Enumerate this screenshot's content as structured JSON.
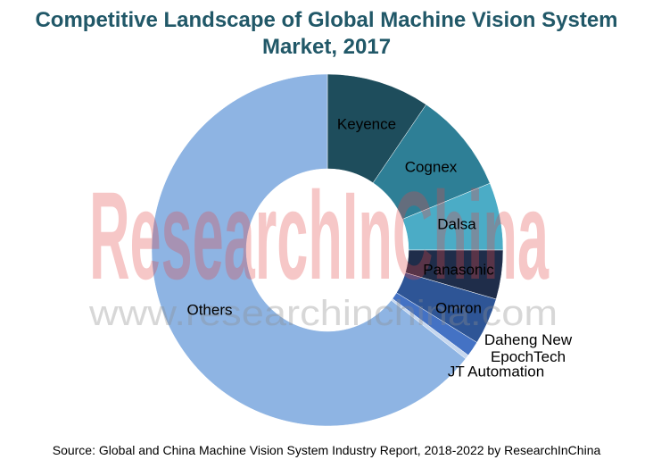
{
  "chart_data": {
    "type": "donut",
    "title": "Competitive Landscape of Global Machine Vision System Market, 2017",
    "categories": [
      "Keyence",
      "Cognex",
      "Dalsa",
      "Panasonic",
      "Omron",
      "Daheng New EpochTech",
      "JT Automation",
      "Others"
    ],
    "values": [
      9.5,
      9.3,
      6.2,
      4.5,
      4.3,
      1.4,
      0.4,
      64.4
    ],
    "colors": [
      "#1e4d5c",
      "#2e7f96",
      "#4bacc6",
      "#1f2d4a",
      "#2e5596",
      "#4472c4",
      "#c6d7ee",
      "#8eb4e3"
    ],
    "watermark": "ResearchInChina",
    "watermark_url": "www.researchinchina.com",
    "source": "Source: Global and China Machine Vision System Industry Report, 2018-2022 by ResearchInChina"
  }
}
